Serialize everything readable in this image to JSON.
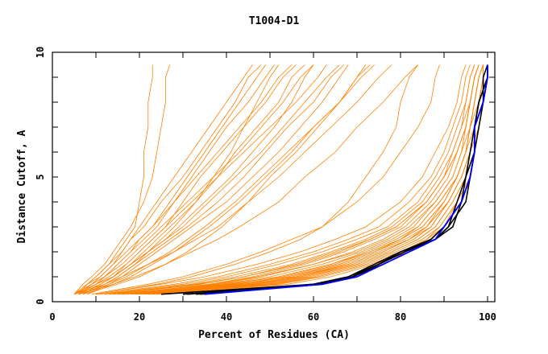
{
  "chart_data": {
    "type": "line",
    "title": "T1004-D1",
    "xlabel": "Percent of Residues (CA)",
    "ylabel": "Distance Cutoff, A",
    "xlim": [
      0,
      100
    ],
    "ylim": [
      0,
      10
    ],
    "xticks": [
      "0",
      "20",
      "40",
      "60",
      "80",
      "100"
    ],
    "xtick_values": [
      0,
      20,
      40,
      60,
      80,
      100
    ],
    "yticks": [
      "0",
      "5",
      "10"
    ],
    "ytick_values": [
      0,
      5,
      10
    ],
    "grid": false,
    "colors": {
      "models": "#ff8000",
      "highlight": "#000000",
      "best": "#0000ff"
    },
    "cutoffs": [
      0.3,
      0.7,
      1,
      1.5,
      2,
      2.5,
      3,
      4,
      5,
      6,
      7,
      8,
      9,
      9.5
    ],
    "series_orange": [
      [
        20,
        45,
        56,
        68,
        76,
        82,
        86,
        91,
        94,
        96,
        97,
        98,
        99,
        100
      ],
      [
        22,
        48,
        58,
        70,
        78,
        84,
        88,
        92,
        95,
        97,
        98,
        99,
        99,
        100
      ],
      [
        18,
        40,
        52,
        64,
        72,
        79,
        84,
        89,
        93,
        95,
        96,
        97,
        98,
        99
      ],
      [
        25,
        50,
        60,
        71,
        79,
        85,
        89,
        93,
        95,
        97,
        98,
        99,
        100,
        100
      ],
      [
        15,
        38,
        48,
        60,
        69,
        76,
        81,
        87,
        91,
        93,
        95,
        96,
        97,
        98
      ],
      [
        19,
        42,
        55,
        66,
        74,
        80,
        85,
        90,
        93,
        95,
        96,
        98,
        99,
        99
      ],
      [
        24,
        52,
        62,
        73,
        81,
        86,
        90,
        93,
        96,
        97,
        98,
        99,
        100,
        100
      ],
      [
        16,
        36,
        46,
        58,
        67,
        74,
        80,
        86,
        90,
        92,
        94,
        95,
        96,
        97
      ],
      [
        21,
        46,
        57,
        69,
        77,
        83,
        87,
        91,
        94,
        96,
        97,
        98,
        99,
        100
      ],
      [
        14,
        34,
        44,
        57,
        66,
        73,
        79,
        86,
        90,
        93,
        95,
        96,
        97,
        98
      ],
      [
        23,
        49,
        59,
        70,
        78,
        84,
        88,
        92,
        95,
        96,
        98,
        99,
        99,
        100
      ],
      [
        17,
        39,
        50,
        62,
        71,
        78,
        83,
        88,
        92,
        94,
        96,
        97,
        98,
        99
      ],
      [
        12,
        30,
        40,
        52,
        62,
        70,
        77,
        84,
        88,
        91,
        93,
        95,
        96,
        97
      ],
      [
        26,
        54,
        64,
        74,
        82,
        87,
        90,
        94,
        96,
        97,
        98,
        99,
        100,
        100
      ],
      [
        20,
        44,
        54,
        66,
        74,
        81,
        86,
        90,
        93,
        95,
        97,
        98,
        99,
        99
      ],
      [
        13,
        32,
        42,
        55,
        64,
        72,
        78,
        85,
        89,
        92,
        94,
        96,
        97,
        98
      ],
      [
        22,
        47,
        57,
        68,
        76,
        82,
        87,
        91,
        94,
        96,
        97,
        98,
        99,
        100
      ],
      [
        18,
        41,
        52,
        64,
        73,
        80,
        85,
        90,
        93,
        95,
        96,
        97,
        98,
        99
      ],
      [
        11,
        28,
        38,
        50,
        60,
        68,
        75,
        82,
        87,
        90,
        92,
        94,
        95,
        96
      ],
      [
        24,
        51,
        61,
        72,
        80,
        86,
        89,
        93,
        95,
        97,
        98,
        99,
        100,
        100
      ],
      [
        16,
        37,
        47,
        60,
        70,
        77,
        82,
        88,
        92,
        94,
        95,
        96,
        97,
        98
      ],
      [
        19,
        43,
        53,
        65,
        73,
        80,
        84,
        89,
        93,
        95,
        96,
        97,
        98,
        99
      ],
      [
        10,
        25,
        35,
        47,
        57,
        65,
        72,
        80,
        85,
        88,
        91,
        93,
        94,
        95
      ],
      [
        21,
        45,
        56,
        67,
        75,
        82,
        86,
        91,
        94,
        96,
        97,
        98,
        99,
        100
      ],
      [
        14,
        33,
        44,
        56,
        65,
        73,
        79,
        86,
        90,
        93,
        95,
        96,
        97,
        98
      ],
      [
        9,
        22,
        30,
        40,
        48,
        55,
        62,
        70,
        76,
        80,
        84,
        87,
        88,
        89
      ],
      [
        10,
        24,
        32,
        42,
        50,
        57,
        62,
        68,
        72,
        76,
        79,
        80,
        82,
        84
      ],
      [
        6,
        14,
        19,
        26,
        32,
        38,
        43,
        52,
        58,
        65,
        70,
        76,
        81,
        84
      ],
      [
        5,
        12,
        16,
        22,
        28,
        33,
        38,
        45,
        52,
        58,
        64,
        70,
        75,
        78
      ],
      [
        6,
        13,
        17,
        22,
        27,
        31,
        35,
        42,
        48,
        54,
        60,
        66,
        71,
        74
      ],
      [
        7,
        15,
        20,
        26,
        31,
        35,
        39,
        45,
        50,
        56,
        61,
        66,
        70,
        72
      ],
      [
        5,
        10,
        14,
        18,
        22,
        26,
        30,
        36,
        42,
        48,
        53,
        58,
        63,
        66
      ],
      [
        6,
        11,
        14,
        18,
        21,
        24,
        27,
        33,
        38,
        44,
        50,
        56,
        61,
        63
      ],
      [
        7,
        12,
        15,
        19,
        23,
        27,
        31,
        38,
        44,
        49,
        54,
        60,
        64,
        67
      ],
      [
        5,
        9,
        12,
        16,
        19,
        22,
        25,
        31,
        37,
        43,
        48,
        53,
        57,
        60
      ],
      [
        6,
        10,
        13,
        17,
        20,
        23,
        26,
        30,
        34,
        39,
        44,
        49,
        53,
        56
      ],
      [
        8,
        13,
        16,
        20,
        24,
        28,
        32,
        40,
        46,
        52,
        57,
        62,
        66,
        68
      ],
      [
        5,
        8,
        11,
        14,
        17,
        20,
        23,
        28,
        33,
        38,
        43,
        48,
        52,
        55
      ],
      [
        6,
        9,
        12,
        15,
        18,
        21,
        24,
        28,
        32,
        36,
        40,
        45,
        49,
        51
      ],
      [
        7,
        11,
        14,
        17,
        20,
        23,
        26,
        32,
        38,
        42,
        47,
        52,
        55,
        58
      ],
      [
        5,
        7,
        9,
        12,
        14,
        16,
        18,
        21,
        23,
        24,
        25,
        26,
        26,
        27
      ],
      [
        6,
        8,
        10,
        13,
        15,
        17,
        19,
        20,
        21,
        21,
        22,
        22,
        23,
        23
      ],
      [
        5,
        9,
        11,
        14,
        16,
        18,
        20,
        24,
        28,
        32,
        36,
        40,
        44,
        46
      ],
      [
        6,
        10,
        12,
        15,
        18,
        20,
        23,
        27,
        31,
        35,
        39,
        43,
        47,
        49
      ],
      [
        7,
        12,
        15,
        19,
        22,
        25,
        28,
        33,
        37,
        41,
        44,
        47,
        50,
        52
      ],
      [
        5,
        8,
        10,
        13,
        16,
        18,
        21,
        25,
        30,
        34,
        38,
        42,
        45,
        48
      ],
      [
        8,
        14,
        18,
        23,
        28,
        32,
        36,
        43,
        49,
        55,
        60,
        66,
        70,
        73
      ],
      [
        6,
        11,
        14,
        18,
        22,
        26,
        29,
        35,
        41,
        46,
        51,
        55,
        58,
        60
      ]
    ],
    "series_black": [
      [
        25,
        60,
        68,
        74,
        80,
        87,
        90,
        94,
        95,
        97,
        97,
        99,
        99,
        100
      ],
      [
        30,
        61,
        69,
        75,
        81,
        88,
        91,
        93,
        95,
        96,
        97,
        98,
        100,
        100
      ],
      [
        33,
        62,
        69,
        75,
        81,
        87,
        90,
        94,
        96,
        97,
        98,
        99,
        100,
        100
      ],
      [
        34,
        60,
        68,
        75,
        80,
        88,
        92,
        94,
        96,
        97,
        97,
        99,
        100,
        100
      ],
      [
        31,
        61,
        69,
        76,
        82,
        88,
        91,
        95,
        96,
        97,
        97,
        98,
        100,
        100
      ]
    ],
    "series_blue": [
      35,
      62,
      70,
      76,
      82,
      88,
      90,
      94,
      96,
      97,
      97,
      99,
      100,
      100
    ]
  }
}
